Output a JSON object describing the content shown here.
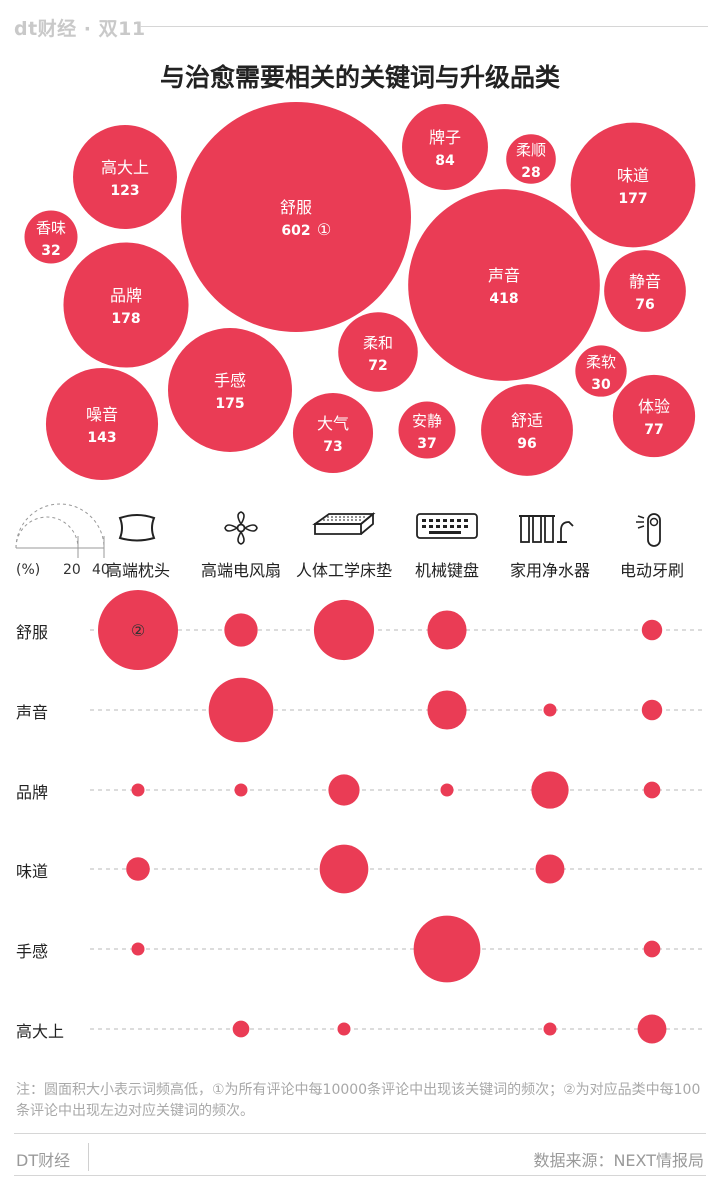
{
  "brand": "dt财经 · 双11",
  "title": "与治愈需要相关的关键词与升级品类",
  "chart_data": [
    {
      "type": "bubble",
      "title": "与治愈需要相关的关键词与升级品类",
      "marker": "①",
      "keywords": [
        {
          "label": "舒服",
          "value": 602
        },
        {
          "label": "声音",
          "value": 418
        },
        {
          "label": "品牌",
          "value": 178
        },
        {
          "label": "味道",
          "value": 177
        },
        {
          "label": "手感",
          "value": 175
        },
        {
          "label": "噪音",
          "value": 143
        },
        {
          "label": "高大上",
          "value": 123
        },
        {
          "label": "舒适",
          "value": 96
        },
        {
          "label": "牌子",
          "value": 84
        },
        {
          "label": "体验",
          "value": 77
        },
        {
          "label": "静音",
          "value": 76
        },
        {
          "label": "大气",
          "value": 73
        },
        {
          "label": "柔和",
          "value": 72
        },
        {
          "label": "安静",
          "value": 37
        },
        {
          "label": "香味",
          "value": 32
        },
        {
          "label": "柔软",
          "value": 30
        },
        {
          "label": "柔顺",
          "value": 28
        }
      ]
    },
    {
      "type": "bubble-matrix",
      "unit": "(%)",
      "legend_ticks": [
        "20",
        "40"
      ],
      "marker": "②",
      "categories": [
        "高端枕头",
        "高端电风扇",
        "人体工学床垫",
        "机械键盘",
        "家用净水器",
        "电动牙刷"
      ],
      "rows": [
        {
          "label": "舒服",
          "values": [
            46,
            8,
            26,
            11,
            null,
            3
          ]
        },
        {
          "label": "声音",
          "values": [
            null,
            30,
            null,
            11,
            1,
            3
          ]
        },
        {
          "label": "品牌",
          "values": [
            1,
            1,
            7,
            1,
            10,
            2
          ]
        },
        {
          "label": "味道",
          "values": [
            4,
            null,
            17,
            null,
            6,
            null
          ]
        },
        {
          "label": "手感",
          "values": [
            1,
            null,
            null,
            32,
            null,
            2
          ]
        },
        {
          "label": "高大上",
          "values": [
            null,
            2,
            1,
            null,
            1,
            6
          ]
        }
      ]
    }
  ],
  "icons": [
    "pillow-icon",
    "fan-icon",
    "mattress-icon",
    "keyboard-icon",
    "water-purifier-icon",
    "toothbrush-icon"
  ],
  "note": "注：圆面积大小表示词频高低，①为所有评论中每10000条评论中出现该关键词的频次；②为对应品类中每100条评论中出现左边对应关键词的频次。",
  "footer": {
    "brand": "DT财经",
    "source": "数据来源：NEXT情报局"
  },
  "colors": {
    "bubble": "#ea3c55",
    "text_on_bubble": "#ffffff",
    "dash": "#b8b8b8"
  }
}
